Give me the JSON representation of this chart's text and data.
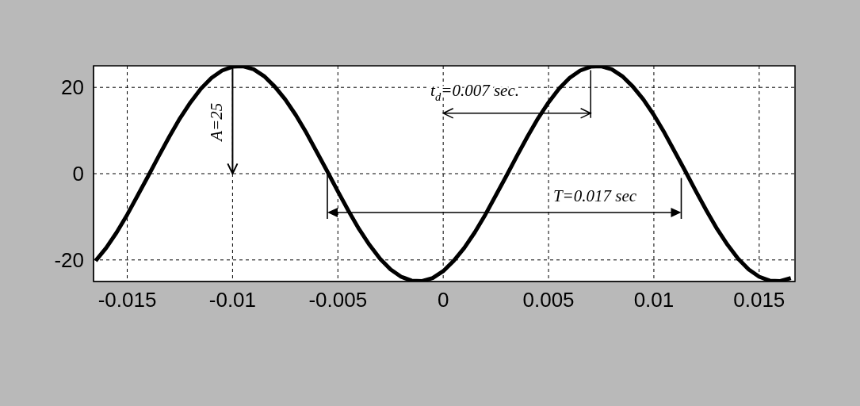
{
  "chart_data": {
    "type": "line",
    "x": [
      -0.0165,
      -0.016,
      -0.0155,
      -0.015,
      -0.0145,
      -0.014,
      -0.0135,
      -0.013,
      -0.0125,
      -0.012,
      -0.0115,
      -0.011,
      -0.0105,
      -0.01,
      -0.0095,
      -0.009,
      -0.0085,
      -0.008,
      -0.0075,
      -0.007,
      -0.0065,
      -0.006,
      -0.0055,
      -0.005,
      -0.0045,
      -0.004,
      -0.0035,
      -0.003,
      -0.0025,
      -0.002,
      -0.0015,
      -0.001,
      -0.0005,
      0,
      0.0005,
      0.001,
      0.0015,
      0.002,
      0.0025,
      0.003,
      0.0035,
      0.004,
      0.0045,
      0.005,
      0.0055,
      0.006,
      0.0065,
      0.007,
      0.0075,
      0.008,
      0.0085,
      0.009,
      0.0095,
      0.01,
      0.0105,
      0.011,
      0.0115,
      0.012,
      0.0125,
      0.013,
      0.0135,
      0.014,
      0.0145,
      0.015,
      0.0155,
      0.016,
      0.0165
    ],
    "series": [
      {
        "color": "#000000",
        "values": [
          -20.2,
          -17.2,
          -13.6,
          -9.5,
          -5.0,
          -0.5,
          4.1,
          8.6,
          12.8,
          16.5,
          19.7,
          22.2,
          23.9,
          24.8,
          24.9,
          24.2,
          22.6,
          20.2,
          17.2,
          13.6,
          9.5,
          5.0,
          0.5,
          -4.1,
          -8.6,
          -12.8,
          -16.5,
          -19.7,
          -22.2,
          -23.9,
          -24.8,
          -24.9,
          -24.2,
          -22.6,
          -20.2,
          -17.2,
          -13.6,
          -9.5,
          -5.0,
          -0.5,
          4.1,
          8.6,
          12.8,
          16.5,
          19.7,
          22.2,
          23.9,
          24.8,
          24.9,
          24.2,
          22.6,
          20.2,
          17.2,
          13.6,
          9.5,
          5.0,
          0.5,
          -4.1,
          -8.6,
          -12.8,
          -16.5,
          -19.7,
          -22.2,
          -23.9,
          -24.8,
          -24.9,
          -24.2
        ]
      }
    ],
    "xlim": [
      -0.0166,
      0.0167
    ],
    "xticks": [
      -0.015,
      -0.01,
      -0.005,
      0,
      0.005,
      0.01,
      0.015
    ],
    "ylim": [
      -25,
      25
    ],
    "yticks": [
      -20,
      0,
      20
    ],
    "grid": true,
    "legend": false,
    "marker": "none",
    "line_style": "solid",
    "annotations": [
      "A=25",
      "t$_{d}$=0.007 sec.",
      "T=0.017 sec"
    ]
  }
}
